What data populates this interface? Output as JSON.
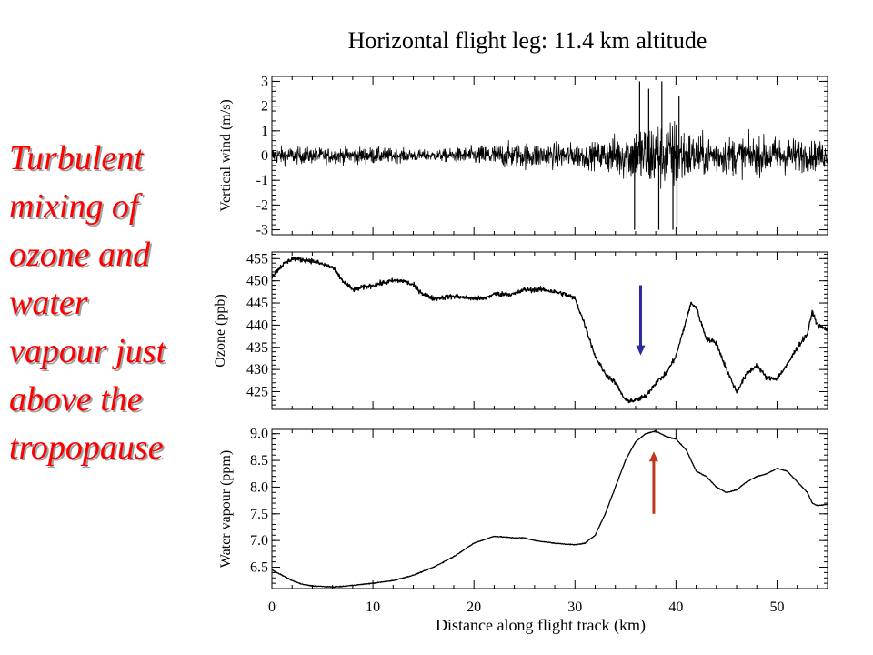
{
  "title": "Horizontal flight leg: 11.4 km altitude",
  "side_caption": [
    "Turbulent",
    "mixing of",
    "ozone and",
    "water",
    "vapour just",
    "above the",
    "tropopause"
  ],
  "colors": {
    "caption": "#ff0000",
    "down_arrow": "#2b2b9e",
    "up_arrow": "#c0391b",
    "trace": "#000000"
  },
  "chart_data": [
    {
      "type": "line",
      "name": "vertical-wind",
      "ylabel": "Vertical wind (m/s)",
      "xlim": [
        0,
        55
      ],
      "ylim": [
        -3.2,
        3.2
      ],
      "yticks": [
        -3,
        -2,
        -1,
        0,
        1,
        2,
        3
      ],
      "ytick_labels": [
        "-3",
        "-2",
        "-1",
        "0",
        "1",
        "2",
        "3"
      ],
      "noise_envelope": {
        "x": [
          0,
          5,
          10,
          14,
          16,
          18,
          20,
          22,
          26,
          30,
          32,
          33,
          35,
          36,
          37,
          38,
          39,
          40,
          41,
          42,
          44,
          46,
          48,
          50,
          52,
          53,
          55
        ],
        "amplitude": [
          0.7,
          0.6,
          0.65,
          0.45,
          0.4,
          0.55,
          0.7,
          0.95,
          1.0,
          0.95,
          1.0,
          1.3,
          1.9,
          2.4,
          2.6,
          2.8,
          2.5,
          3.0,
          2.1,
          1.6,
          1.5,
          1.5,
          1.4,
          1.45,
          1.35,
          1.2,
          1.0
        ]
      },
      "spikes": [
        {
          "x": 35.9,
          "y": -3.0
        },
        {
          "x": 36.4,
          "y": 3.0
        },
        {
          "x": 37.3,
          "y": 2.7
        },
        {
          "x": 38.3,
          "y": -3.0
        },
        {
          "x": 38.6,
          "y": 3.0
        },
        {
          "x": 39.7,
          "y": -3.0
        },
        {
          "x": 40.1,
          "y": -3.0
        },
        {
          "x": 40.3,
          "y": 2.4
        }
      ]
    },
    {
      "type": "line",
      "name": "ozone",
      "ylabel": "Ozone (ppb)",
      "xlim": [
        0,
        55
      ],
      "ylim": [
        421,
        456.5
      ],
      "yticks": [
        425,
        430,
        435,
        440,
        445,
        450,
        455
      ],
      "ytick_labels": [
        "425",
        "430",
        "435",
        "440",
        "445",
        "450",
        "455"
      ],
      "x": [
        0,
        1,
        2,
        4,
        6,
        7,
        8,
        10,
        12,
        13,
        14,
        15,
        16,
        18,
        20,
        21,
        22,
        24,
        25,
        27,
        29,
        30,
        31,
        32,
        33,
        34,
        35,
        36,
        37,
        38,
        39,
        40,
        41,
        41.5,
        42,
        43,
        44,
        45,
        46,
        47,
        48,
        49,
        50,
        51,
        52,
        53,
        53.5,
        54,
        55
      ],
      "y": [
        451,
        453.5,
        455,
        454.5,
        453,
        450,
        448,
        449,
        450,
        450,
        449,
        447,
        446,
        446.5,
        446,
        446,
        447,
        447,
        448,
        448,
        447,
        446,
        440,
        433,
        429,
        427,
        423,
        423,
        424,
        427,
        429,
        433,
        441,
        445,
        444,
        437,
        436,
        430,
        425,
        429,
        431,
        428,
        428,
        431,
        435,
        438,
        443,
        440,
        439
      ],
      "noise_amplitude": 0.9,
      "annotation": {
        "type": "arrow",
        "direction": "down",
        "x": 36.5,
        "y_from": 449,
        "y_to": 434
      }
    },
    {
      "type": "line",
      "name": "water-vapour",
      "ylabel": "Water vapour (ppm)",
      "xlabel": "Distance along flight track (km)",
      "xlim": [
        0,
        55
      ],
      "ylim": [
        6.1,
        9.08
      ],
      "yticks": [
        6.5,
        7.0,
        7.5,
        8.0,
        8.5,
        9.0
      ],
      "ytick_labels": [
        "6.5",
        "7.0",
        "7.5",
        "8.0",
        "8.5",
        "9.0"
      ],
      "xticks": [
        0,
        10,
        20,
        30,
        40,
        50
      ],
      "xtick_labels": [
        "0",
        "10",
        "20",
        "30",
        "40",
        "50"
      ],
      "x": [
        0,
        1,
        2,
        3,
        4,
        5,
        6,
        7,
        8,
        10,
        12,
        14,
        16,
        18,
        20,
        22,
        24,
        25,
        26,
        28,
        30,
        31,
        32,
        33,
        34,
        35,
        36,
        37,
        38,
        39,
        40,
        41,
        42,
        43,
        44,
        45,
        46,
        47,
        48,
        49,
        50,
        51,
        52,
        53,
        53.5,
        54,
        55
      ],
      "y": [
        6.45,
        6.35,
        6.25,
        6.18,
        6.15,
        6.14,
        6.13,
        6.14,
        6.16,
        6.2,
        6.25,
        6.35,
        6.5,
        6.7,
        6.95,
        7.08,
        7.05,
        7.05,
        7.0,
        6.95,
        6.92,
        6.95,
        7.1,
        7.5,
        8.0,
        8.5,
        8.85,
        9.0,
        9.05,
        8.95,
        8.9,
        8.7,
        8.3,
        8.2,
        8.0,
        7.9,
        7.95,
        8.1,
        8.2,
        8.25,
        8.35,
        8.3,
        8.1,
        7.9,
        7.7,
        7.65,
        7.68
      ],
      "noise_amplitude": 0.012,
      "annotation": {
        "type": "arrow",
        "direction": "up",
        "x": 37.8,
        "y_from": 7.5,
        "y_to": 8.6
      }
    }
  ]
}
